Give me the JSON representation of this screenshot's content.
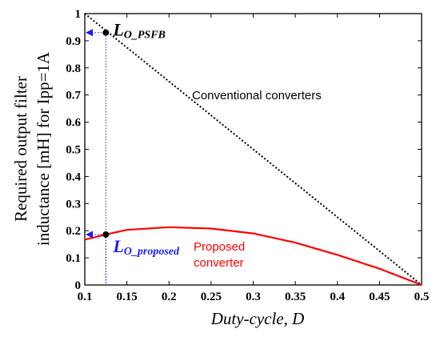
{
  "chart_data": {
    "type": "line",
    "xlabel": "Duty-cycle, D",
    "ylabel_line1": "Required output filter",
    "ylabel_line2": "inductance [mH] for Ipp=1A",
    "xlim": [
      0.1,
      0.5
    ],
    "ylim": [
      0,
      1
    ],
    "xticks": [
      0.1,
      0.15,
      0.2,
      0.25,
      0.3,
      0.35,
      0.4,
      0.45,
      0.5
    ],
    "xtick_labels": [
      "0.1",
      "0.15",
      "0.2",
      "0.25",
      "0.3",
      "0.35",
      "0.4",
      "0.45",
      "0.5"
    ],
    "yticks": [
      0,
      0.1,
      0.2,
      0.3,
      0.4,
      0.5,
      0.6,
      0.7,
      0.8,
      0.9,
      1
    ],
    "ytick_labels": [
      "0",
      "0.1",
      "0.2",
      "0.3",
      "0.4",
      "0.5",
      "0.6",
      "0.7",
      "0.8",
      "0.9",
      "1"
    ],
    "grid": false,
    "series": [
      {
        "name": "Conventional converters",
        "color": "#000000",
        "style": "dotted",
        "x": [
          0.1,
          0.5
        ],
        "y": [
          1.0,
          0.0
        ]
      },
      {
        "name": "Proposed converter",
        "name_line1": "Proposed",
        "name_line2": "converter",
        "color": "#ff0000",
        "style": "solid",
        "x": [
          0.1,
          0.125,
          0.15,
          0.2,
          0.25,
          0.3,
          0.35,
          0.4,
          0.45,
          0.5
        ],
        "y": [
          0.167,
          0.186,
          0.203,
          0.213,
          0.208,
          0.19,
          0.156,
          0.111,
          0.06,
          0.0
        ]
      }
    ],
    "annotations": [
      {
        "label_main": "L",
        "label_sub": "O_PSFB",
        "x": 0.125,
        "y": 0.93,
        "label_color": "#000000",
        "marker_color": "#000000",
        "guide_color": "#1a1aff"
      },
      {
        "label_main": "L",
        "label_sub": "O_proposed",
        "x": 0.125,
        "y": 0.186,
        "label_color": "#1a1aff",
        "marker_color": "#000000",
        "guide_color": "#1a1aff"
      }
    ]
  }
}
